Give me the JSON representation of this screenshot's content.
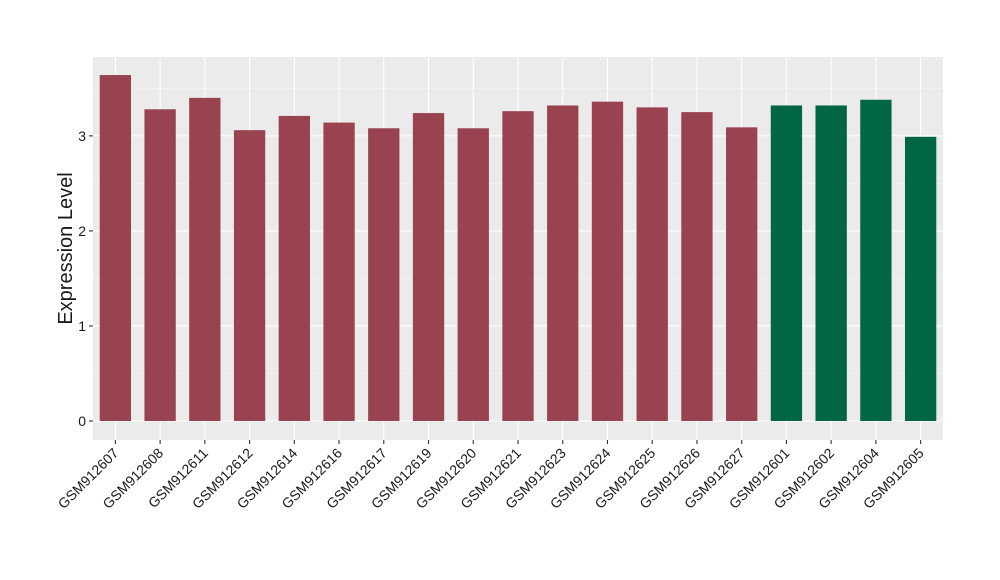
{
  "chart_data": {
    "type": "bar",
    "title": "",
    "xlabel": "",
    "ylabel": "Expression Level",
    "ylim": [
      -0.2,
      3.83
    ],
    "yticks": [
      0,
      1,
      2,
      3
    ],
    "grid": true,
    "categories": [
      "GSM912607",
      "GSM912608",
      "GSM912611",
      "GSM912612",
      "GSM912614",
      "GSM912616",
      "GSM912617",
      "GSM912619",
      "GSM912620",
      "GSM912621",
      "GSM912623",
      "GSM912624",
      "GSM912625",
      "GSM912626",
      "GSM912627",
      "GSM912601",
      "GSM912602",
      "GSM912604",
      "GSM912605"
    ],
    "values": [
      3.64,
      3.28,
      3.4,
      3.06,
      3.21,
      3.14,
      3.08,
      3.24,
      3.08,
      3.26,
      3.32,
      3.36,
      3.3,
      3.25,
      3.09,
      3.32,
      3.32,
      3.38,
      2.99
    ],
    "groups": [
      0,
      0,
      0,
      0,
      0,
      0,
      0,
      0,
      0,
      0,
      0,
      0,
      0,
      0,
      0,
      1,
      1,
      1,
      1
    ],
    "colors": [
      "#994350",
      "#006644"
    ],
    "panel_background": "#ebebeb"
  }
}
